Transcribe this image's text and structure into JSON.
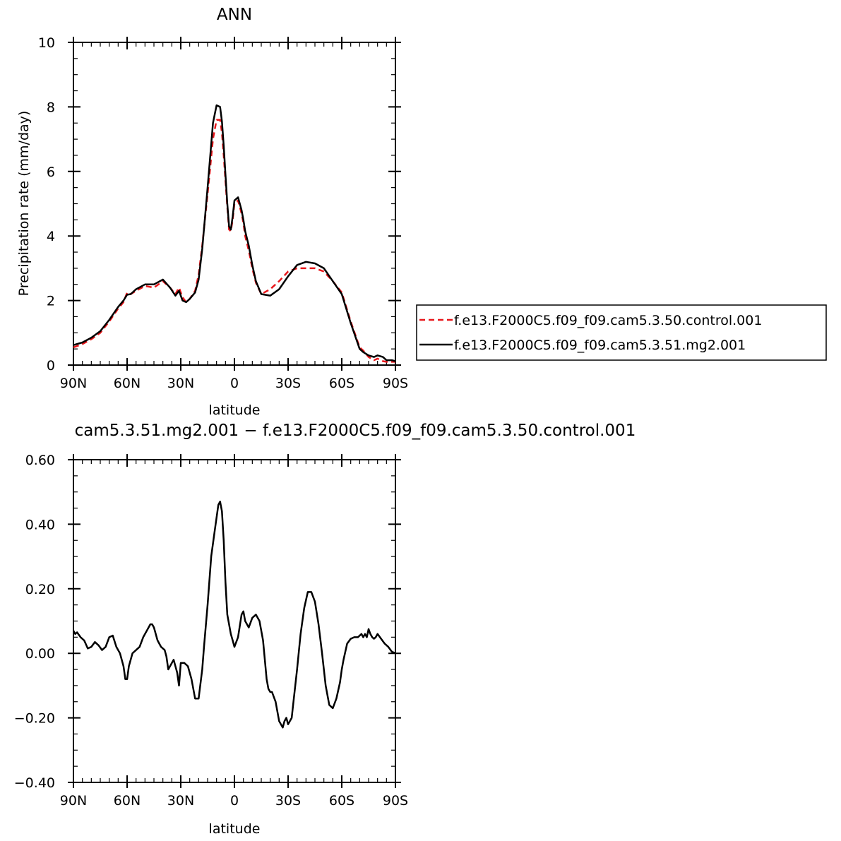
{
  "chart_data": [
    {
      "type": "line",
      "title": "ANN",
      "xlabel": "latitude",
      "ylabel": "Precipitation rate (mm/day)",
      "xlim": [
        90,
        -90
      ],
      "ylim": [
        0,
        10
      ],
      "x_ticks": [
        {
          "value": 90,
          "label": "90N"
        },
        {
          "value": 60,
          "label": "60N"
        },
        {
          "value": 30,
          "label": "30N"
        },
        {
          "value": 0,
          "label": "0"
        },
        {
          "value": -30,
          "label": "30S"
        },
        {
          "value": -60,
          "label": "60S"
        },
        {
          "value": -90,
          "label": "90S"
        }
      ],
      "y_ticks": [
        {
          "value": 0,
          "label": "0"
        },
        {
          "value": 2,
          "label": "2"
        },
        {
          "value": 4,
          "label": "4"
        },
        {
          "value": 6,
          "label": "6"
        },
        {
          "value": 8,
          "label": "8"
        },
        {
          "value": 10,
          "label": "10"
        }
      ],
      "legend_position": "right",
      "series": [
        {
          "name": "f.e13.F2000C5.f09_f09.cam5.3.50.control.001",
          "color": "#e8171b",
          "style": "dashed",
          "x": [
            90,
            85,
            80,
            75,
            70,
            65,
            62,
            60,
            58,
            55,
            50,
            45,
            40,
            36,
            33,
            31,
            29,
            27,
            25,
            22,
            20,
            18,
            15,
            12,
            10,
            8,
            7,
            6,
            5,
            4,
            3,
            2,
            1,
            0,
            -2,
            -4,
            -5,
            -6,
            -8,
            -10,
            -12,
            -15,
            -20,
            -25,
            -30,
            -35,
            -40,
            -45,
            -50,
            -55,
            -60,
            -65,
            -70,
            -72,
            -75,
            -78,
            -80,
            -83,
            -85,
            -88,
            -90
          ],
          "y": [
            0.55,
            0.65,
            0.8,
            1.0,
            1.35,
            1.75,
            1.95,
            2.25,
            2.2,
            2.3,
            2.45,
            2.4,
            2.6,
            2.4,
            2.2,
            2.4,
            2.1,
            1.95,
            2.05,
            2.3,
            2.8,
            3.7,
            5.3,
            7.0,
            7.6,
            7.6,
            7.2,
            6.5,
            5.7,
            4.9,
            4.2,
            4.15,
            4.5,
            5.0,
            5.1,
            4.7,
            4.4,
            4.0,
            3.55,
            3.0,
            2.55,
            2.2,
            2.35,
            2.6,
            2.9,
            3.0,
            3.0,
            3.0,
            2.9,
            2.6,
            2.25,
            1.35,
            0.55,
            0.45,
            0.25,
            0.15,
            0.2,
            0.12,
            0.1,
            0.1,
            0.1
          ]
        },
        {
          "name": "f.e13.F2000C5.f09_f09.cam5.3.51.mg2.001",
          "color": "#000000",
          "style": "solid",
          "x": [
            90,
            85,
            80,
            75,
            70,
            65,
            62,
            60,
            58,
            55,
            50,
            45,
            40,
            36,
            33,
            31,
            29,
            27,
            25,
            22,
            20,
            18,
            15,
            12,
            10,
            8,
            7,
            6,
            5,
            4,
            3,
            2,
            1,
            0,
            -2,
            -4,
            -5,
            -6,
            -8,
            -10,
            -12,
            -15,
            -20,
            -25,
            -30,
            -35,
            -40,
            -45,
            -50,
            -55,
            -60,
            -65,
            -70,
            -72,
            -75,
            -78,
            -80,
            -83,
            -85,
            -88,
            -90
          ],
          "y": [
            0.62,
            0.7,
            0.85,
            1.05,
            1.4,
            1.8,
            2.0,
            2.18,
            2.2,
            2.35,
            2.5,
            2.5,
            2.65,
            2.4,
            2.15,
            2.3,
            2.0,
            1.95,
            2.05,
            2.25,
            2.65,
            3.6,
            5.5,
            7.5,
            8.05,
            8.0,
            7.55,
            6.8,
            5.9,
            5.0,
            4.3,
            4.2,
            4.6,
            5.1,
            5.2,
            4.8,
            4.5,
            4.15,
            3.7,
            3.1,
            2.6,
            2.2,
            2.15,
            2.35,
            2.75,
            3.1,
            3.2,
            3.15,
            3.0,
            2.6,
            2.2,
            1.3,
            0.5,
            0.4,
            0.3,
            0.25,
            0.3,
            0.25,
            0.15,
            0.15,
            0.12
          ]
        }
      ]
    },
    {
      "type": "line",
      "title": "cam5.3.51.mg2.001 − f.e13.F2000C5.f09_f09.cam5.3.50.control.001",
      "xlabel": "latitude",
      "ylabel": "",
      "xlim": [
        90,
        -90
      ],
      "ylim": [
        -0.4,
        0.6
      ],
      "x_ticks": [
        {
          "value": 90,
          "label": "90N"
        },
        {
          "value": 60,
          "label": "60N"
        },
        {
          "value": 30,
          "label": "30N"
        },
        {
          "value": 0,
          "label": "0"
        },
        {
          "value": -30,
          "label": "30S"
        },
        {
          "value": -60,
          "label": "60S"
        },
        {
          "value": -90,
          "label": "90S"
        }
      ],
      "y_ticks": [
        {
          "value": -0.4,
          "label": "−0.40"
        },
        {
          "value": -0.2,
          "label": "−0.20"
        },
        {
          "value": 0.0,
          "label": "0.00"
        },
        {
          "value": 0.2,
          "label": "0.20"
        },
        {
          "value": 0.4,
          "label": "0.40"
        },
        {
          "value": 0.6,
          "label": "0.60"
        }
      ],
      "series": [
        {
          "color": "#000000",
          "style": "solid",
          "x": [
            90,
            89,
            88,
            86,
            84,
            82,
            80,
            78,
            76,
            74,
            72,
            70,
            68,
            66,
            64,
            62,
            61,
            60,
            59,
            57,
            55,
            53,
            51,
            49,
            47,
            46,
            45,
            43,
            41,
            39,
            38,
            37,
            36,
            34,
            32,
            31,
            30,
            29,
            28,
            26,
            24,
            22,
            20,
            18,
            17,
            15,
            13,
            11,
            9,
            8,
            7,
            6,
            5,
            4,
            2,
            1,
            0,
            -2,
            -4,
            -5,
            -6,
            -8,
            -10,
            -12,
            -14,
            -16,
            -18,
            -19,
            -20,
            -21,
            -23,
            -25,
            -27,
            -28,
            -29,
            -30,
            -32,
            -33,
            -35,
            -37,
            -39,
            -41,
            -43,
            -45,
            -47,
            -49,
            -51,
            -53,
            -55,
            -57,
            -59,
            -60,
            -61,
            -63,
            -65,
            -67,
            -69,
            -71,
            -72,
            -73,
            -74,
            -75,
            -76,
            -77,
            -78,
            -79,
            -80,
            -82,
            -84,
            -86,
            -88,
            -90
          ],
          "y": [
            0.07,
            0.06,
            0.065,
            0.05,
            0.04,
            0.015,
            0.02,
            0.035,
            0.025,
            0.01,
            0.02,
            0.05,
            0.055,
            0.02,
            0.0,
            -0.04,
            -0.08,
            -0.08,
            -0.04,
            0.0,
            0.01,
            0.02,
            0.05,
            0.07,
            0.09,
            0.09,
            0.08,
            0.04,
            0.02,
            0.01,
            -0.01,
            -0.05,
            -0.04,
            -0.02,
            -0.06,
            -0.1,
            -0.03,
            -0.03,
            -0.03,
            -0.04,
            -0.08,
            -0.14,
            -0.14,
            -0.05,
            0.02,
            0.15,
            0.3,
            0.38,
            0.46,
            0.47,
            0.44,
            0.35,
            0.22,
            0.12,
            0.06,
            0.04,
            0.02,
            0.05,
            0.12,
            0.13,
            0.1,
            0.08,
            0.11,
            0.12,
            0.1,
            0.04,
            -0.08,
            -0.11,
            -0.12,
            -0.12,
            -0.15,
            -0.21,
            -0.23,
            -0.21,
            -0.2,
            -0.22,
            -0.2,
            -0.15,
            -0.05,
            0.06,
            0.14,
            0.19,
            0.19,
            0.16,
            0.09,
            0.0,
            -0.1,
            -0.16,
            -0.17,
            -0.14,
            -0.09,
            -0.05,
            -0.02,
            0.03,
            0.045,
            0.05,
            0.05,
            0.06,
            0.05,
            0.06,
            0.05,
            0.075,
            0.06,
            0.05,
            0.045,
            0.05,
            0.06,
            0.045,
            0.03,
            0.02,
            0.005,
            0.0
          ]
        }
      ]
    }
  ]
}
